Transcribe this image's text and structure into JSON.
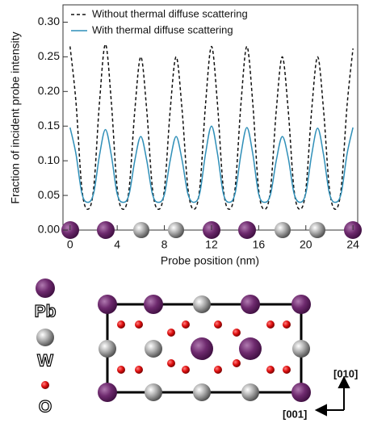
{
  "chart_data": {
    "type": "line",
    "xlabel": "Probe position (nm)",
    "ylabel": "Fraction of incident probe intensity",
    "x": [
      0,
      0.5,
      1,
      1.5,
      2,
      2.5,
      3,
      3.5,
      4,
      4.5,
      5,
      5.5,
      6,
      6.5,
      7,
      7.5,
      8,
      8.5,
      9,
      9.5,
      10,
      10.5,
      11,
      11.5,
      12,
      12.5,
      13,
      13.5,
      14,
      14.5,
      15,
      15.5,
      16,
      16.5,
      17,
      17.5,
      18,
      18.5,
      19,
      19.5,
      20,
      20.5,
      21,
      21.5,
      22,
      22.5,
      23,
      23.5,
      24
    ],
    "series": [
      {
        "name": "Without thermal diffuse scattering",
        "color": "#111111",
        "linestyle": "dashed",
        "values": [
          0.265,
          0.185,
          0.06,
          0.03,
          0.06,
          0.185,
          0.268,
          0.185,
          0.06,
          0.03,
          0.058,
          0.174,
          0.25,
          0.174,
          0.058,
          0.03,
          0.058,
          0.174,
          0.25,
          0.174,
          0.06,
          0.03,
          0.06,
          0.183,
          0.265,
          0.183,
          0.06,
          0.03,
          0.06,
          0.183,
          0.265,
          0.183,
          0.058,
          0.03,
          0.058,
          0.174,
          0.25,
          0.174,
          0.058,
          0.03,
          0.058,
          0.174,
          0.25,
          0.174,
          0.06,
          0.03,
          0.06,
          0.18,
          0.262
        ]
      },
      {
        "name": "With thermal diffuse scattering",
        "color": "#2f8fb8",
        "linestyle": "solid",
        "values": [
          0.148,
          0.11,
          0.053,
          0.04,
          0.053,
          0.108,
          0.145,
          0.108,
          0.052,
          0.04,
          0.051,
          0.101,
          0.135,
          0.101,
          0.051,
          0.04,
          0.051,
          0.101,
          0.135,
          0.101,
          0.052,
          0.04,
          0.053,
          0.111,
          0.15,
          0.111,
          0.053,
          0.04,
          0.053,
          0.11,
          0.148,
          0.11,
          0.052,
          0.04,
          0.051,
          0.101,
          0.135,
          0.105,
          0.053,
          0.04,
          0.053,
          0.109,
          0.147,
          0.109,
          0.053,
          0.04,
          0.053,
          0.11,
          0.148
        ]
      }
    ],
    "xlim": [
      -0.6,
      24.4
    ],
    "xticks": [
      0,
      4,
      8,
      12,
      16,
      20,
      24
    ],
    "ylim": [
      0,
      0.325
    ],
    "yticks": [
      {
        "value": 0,
        "label": "0.00"
      },
      {
        "value": 0.05,
        "label": "0.05"
      },
      {
        "value": 0.1,
        "label": "0.10"
      },
      {
        "value": 0.15,
        "label": "0.15"
      },
      {
        "value": 0.2,
        "label": "0.20"
      },
      {
        "value": 0.25,
        "label": "0.25"
      },
      {
        "value": 0.3,
        "label": "0.30"
      }
    ],
    "legend": "upper left"
  },
  "diagram": {
    "legend": [
      "Pb",
      "W",
      "O"
    ],
    "directions": [
      "[010]",
      "[001]"
    ]
  }
}
